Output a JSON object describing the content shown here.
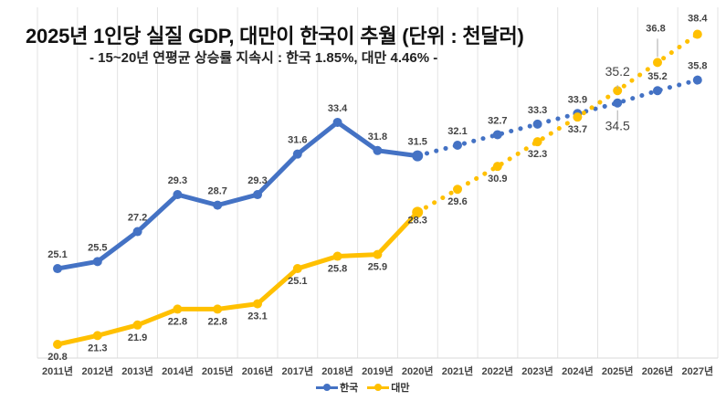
{
  "chart_data": {
    "type": "line",
    "title": "2025년 1인당 실질 GDP, 대만이 한국이 추월 (단위 : 천달러)",
    "subtitle": "- 15~20년 연평균 상승률 지속시 : 한국 1.85%, 대만 4.46% -",
    "xlabel": "",
    "ylabel": "",
    "grid": "vertical",
    "legend_position": "bottom",
    "categories": [
      "2011년",
      "2012년",
      "2013년",
      "2014년",
      "2015년",
      "2016년",
      "2017년",
      "2018년",
      "2019년",
      "2020년",
      "2021년",
      "2022년",
      "2023년",
      "2024년",
      "2025년",
      "2026년",
      "2027년"
    ],
    "ylim": [
      20.0,
      39.0
    ],
    "actual_last_index": 9,
    "series": [
      {
        "name": "한국",
        "color": "#4472C4",
        "values": [
          25.1,
          25.5,
          27.2,
          29.3,
          28.7,
          29.3,
          31.6,
          33.4,
          31.8,
          31.5,
          32.1,
          32.7,
          33.3,
          33.9,
          34.5,
          35.2,
          35.8
        ],
        "labels": [
          "25.1",
          "25.5",
          "27.2",
          "29.3",
          "28.7",
          "29.3",
          "31.6",
          "33.4",
          "31.8",
          "31.5",
          "32.1",
          "32.7",
          "33.3",
          "33.9",
          "34.5",
          "35.2",
          "35.8"
        ],
        "projection": "dotted from 2020년"
      },
      {
        "name": "대만",
        "color": "#FFC000",
        "values": [
          20.8,
          21.3,
          21.9,
          22.8,
          22.8,
          23.1,
          25.1,
          25.8,
          25.9,
          28.3,
          29.6,
          30.9,
          32.3,
          33.7,
          35.2,
          36.8,
          38.4
        ],
        "labels": [
          "20.8",
          "21.3",
          "21.9",
          "22.8",
          "22.8",
          "23.1",
          "25.1",
          "25.8",
          "25.9",
          "28.3",
          "29.6",
          "30.9",
          "32.3",
          "33.7",
          "35.2",
          "36.8",
          "38.4"
        ],
        "projection": "dotted from 2020년"
      }
    ]
  },
  "legend": {
    "items": [
      {
        "label": "한국",
        "color": "#4472C4"
      },
      {
        "label": "대만",
        "color": "#FFC000"
      }
    ]
  }
}
